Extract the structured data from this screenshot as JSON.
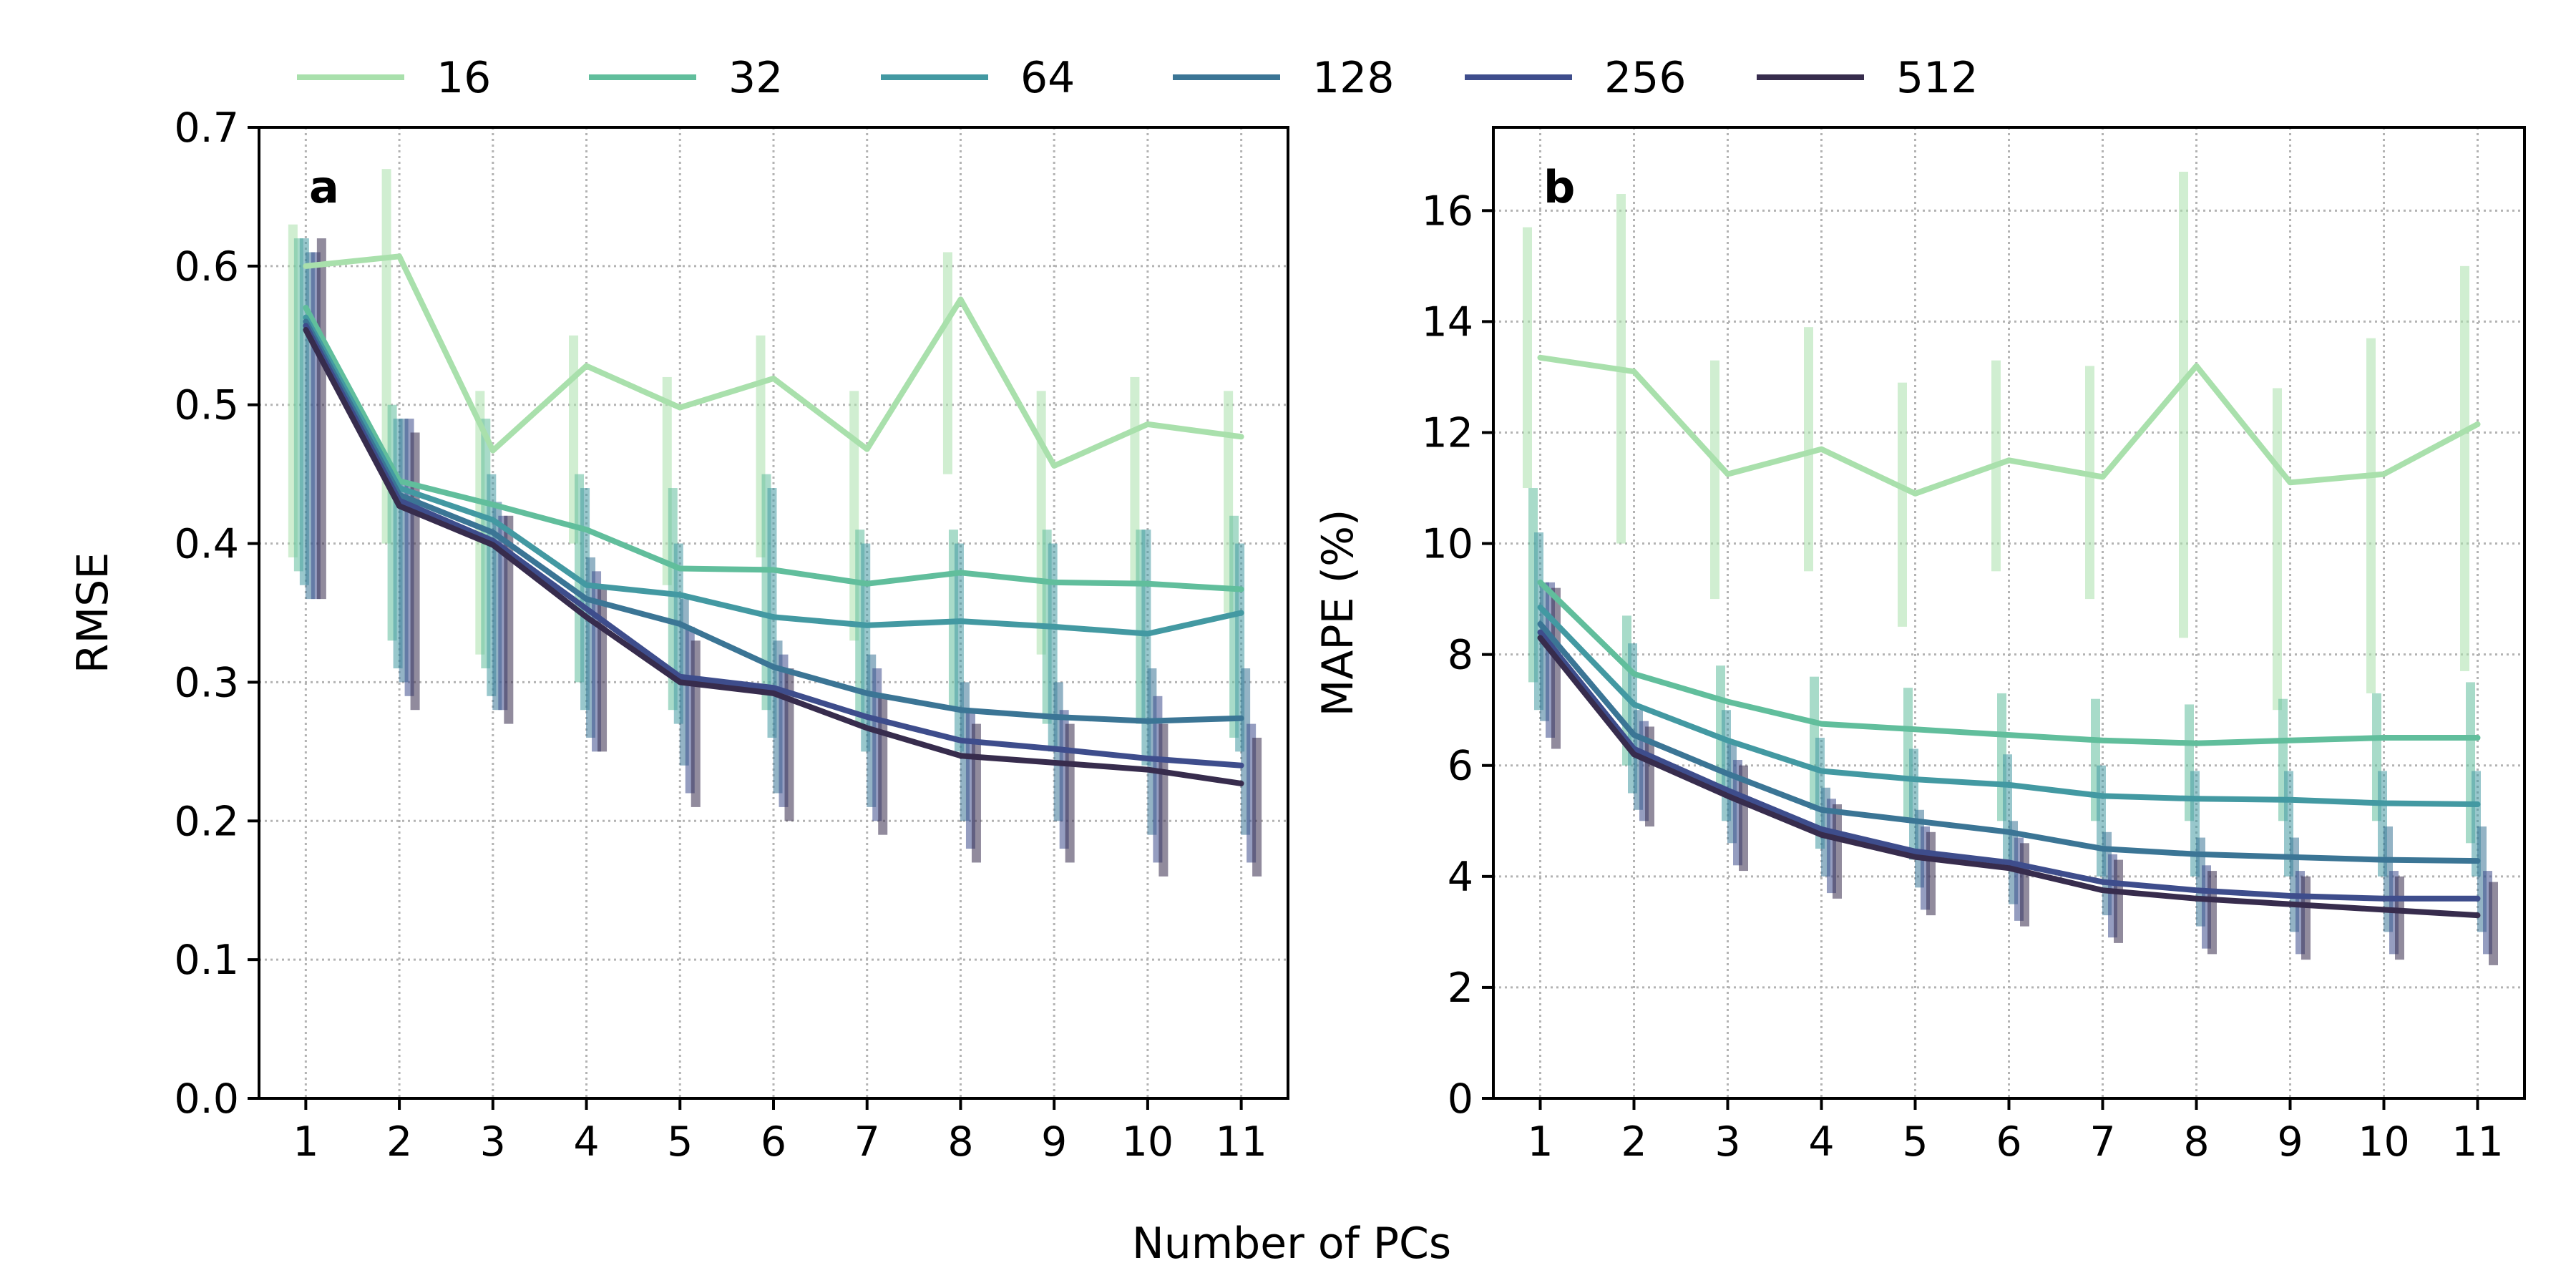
{
  "legend": {
    "entries": [
      {
        "label": "16",
        "color": "#a9e0ac"
      },
      {
        "label": "32",
        "color": "#61be9c"
      },
      {
        "label": "64",
        "color": "#4399a2"
      },
      {
        "label": "128",
        "color": "#3b7595"
      },
      {
        "label": "256",
        "color": "#3e4d8c"
      },
      {
        "label": "512",
        "color": "#372c4d"
      }
    ]
  },
  "x_label": "Number of PCs",
  "chart_data": [
    {
      "type": "line",
      "panel_letter": "a",
      "ylabel": "RMSE",
      "xlabel": "Number of PCs",
      "x": [
        1,
        2,
        3,
        4,
        5,
        6,
        7,
        8,
        9,
        10,
        11
      ],
      "x_ticks": [
        "1",
        "2",
        "3",
        "4",
        "5",
        "6",
        "7",
        "8",
        "9",
        "10",
        "11"
      ],
      "xlim": [
        0.5,
        11.5
      ],
      "ylim": [
        0,
        0.7
      ],
      "y_ticks": [
        0.0,
        0.1,
        0.2,
        0.3,
        0.4,
        0.5,
        0.6,
        0.7
      ],
      "y_tick_labels": [
        "0.0",
        "0.1",
        "0.2",
        "0.3",
        "0.4",
        "0.5",
        "0.6",
        "0.7"
      ],
      "grid": true,
      "error_bars": true,
      "series": [
        {
          "name": "16",
          "color": "#a9e0ac",
          "values": [
            0.6,
            0.607,
            0.467,
            0.528,
            0.498,
            0.519,
            0.468,
            0.576,
            0.456,
            0.486,
            0.477
          ],
          "lower": [
            0.39,
            0.4,
            0.32,
            0.4,
            0.37,
            0.39,
            0.33,
            0.45,
            0.32,
            0.37,
            0.35
          ],
          "upper": [
            0.63,
            0.67,
            0.51,
            0.55,
            0.52,
            0.55,
            0.51,
            0.61,
            0.51,
            0.52,
            0.51
          ]
        },
        {
          "name": "32",
          "color": "#61be9c",
          "values": [
            0.57,
            0.445,
            0.428,
            0.41,
            0.382,
            0.381,
            0.371,
            0.379,
            0.372,
            0.371,
            0.367
          ],
          "lower": [
            0.38,
            0.33,
            0.31,
            0.3,
            0.28,
            0.28,
            0.27,
            0.28,
            0.27,
            0.27,
            0.26
          ],
          "upper": [
            0.62,
            0.5,
            0.49,
            0.45,
            0.44,
            0.45,
            0.41,
            0.41,
            0.41,
            0.41,
            0.42
          ]
        },
        {
          "name": "64",
          "color": "#4399a2",
          "values": [
            0.563,
            0.44,
            0.417,
            0.37,
            0.363,
            0.347,
            0.341,
            0.344,
            0.34,
            0.335,
            0.35
          ],
          "lower": [
            0.37,
            0.31,
            0.29,
            0.28,
            0.27,
            0.26,
            0.25,
            0.25,
            0.25,
            0.24,
            0.25
          ],
          "upper": [
            0.62,
            0.49,
            0.45,
            0.44,
            0.4,
            0.44,
            0.4,
            0.4,
            0.4,
            0.41,
            0.4
          ]
        },
        {
          "name": "128",
          "color": "#3b7595",
          "values": [
            0.56,
            0.435,
            0.408,
            0.36,
            0.342,
            0.311,
            0.292,
            0.28,
            0.275,
            0.272,
            0.274
          ],
          "lower": [
            0.36,
            0.3,
            0.28,
            0.26,
            0.24,
            0.22,
            0.21,
            0.2,
            0.2,
            0.19,
            0.19
          ],
          "upper": [
            0.61,
            0.49,
            0.43,
            0.39,
            0.36,
            0.33,
            0.32,
            0.3,
            0.3,
            0.31,
            0.31
          ]
        },
        {
          "name": "256",
          "color": "#3e4d8c",
          "values": [
            0.557,
            0.431,
            0.402,
            0.353,
            0.304,
            0.296,
            0.275,
            0.258,
            0.252,
            0.245,
            0.24
          ],
          "lower": [
            0.36,
            0.29,
            0.28,
            0.25,
            0.22,
            0.21,
            0.2,
            0.18,
            0.18,
            0.17,
            0.17
          ],
          "upper": [
            0.61,
            0.49,
            0.42,
            0.38,
            0.34,
            0.32,
            0.31,
            0.28,
            0.28,
            0.29,
            0.27
          ]
        },
        {
          "name": "512",
          "color": "#372c4d",
          "values": [
            0.554,
            0.427,
            0.399,
            0.347,
            0.3,
            0.292,
            0.267,
            0.247,
            0.242,
            0.237,
            0.227
          ],
          "lower": [
            0.36,
            0.28,
            0.27,
            0.25,
            0.21,
            0.2,
            0.19,
            0.17,
            0.17,
            0.16,
            0.16
          ],
          "upper": [
            0.62,
            0.48,
            0.42,
            0.37,
            0.33,
            0.31,
            0.29,
            0.27,
            0.27,
            0.27,
            0.26
          ]
        }
      ]
    },
    {
      "type": "line",
      "panel_letter": "b",
      "ylabel": "MAPE (%)",
      "xlabel": "Number of PCs",
      "x": [
        1,
        2,
        3,
        4,
        5,
        6,
        7,
        8,
        9,
        10,
        11
      ],
      "x_ticks": [
        "1",
        "2",
        "3",
        "4",
        "5",
        "6",
        "7",
        "8",
        "9",
        "10",
        "11"
      ],
      "xlim": [
        0.5,
        11.5
      ],
      "ylim": [
        0,
        17.5
      ],
      "y_ticks": [
        0,
        2,
        4,
        6,
        8,
        10,
        12,
        14,
        16
      ],
      "y_tick_labels": [
        "0",
        "2",
        "4",
        "6",
        "8",
        "10",
        "12",
        "14",
        "16"
      ],
      "grid": true,
      "error_bars": true,
      "series": [
        {
          "name": "16",
          "color": "#a9e0ac",
          "values": [
            13.35,
            13.1,
            11.25,
            11.7,
            10.9,
            11.5,
            11.2,
            13.2,
            11.1,
            11.25,
            12.15
          ],
          "lower": [
            11.0,
            10.0,
            9.0,
            9.5,
            8.5,
            9.5,
            9.0,
            8.3,
            7.0,
            7.3,
            7.7
          ],
          "upper": [
            15.7,
            16.3,
            13.3,
            13.9,
            12.9,
            13.3,
            13.2,
            16.7,
            12.8,
            13.7,
            15.0
          ]
        },
        {
          "name": "32",
          "color": "#61be9c",
          "values": [
            9.3,
            7.65,
            7.15,
            6.75,
            6.65,
            6.55,
            6.45,
            6.4,
            6.45,
            6.5,
            6.5
          ],
          "lower": [
            7.5,
            6.0,
            5.5,
            5.2,
            5.0,
            5.0,
            5.0,
            5.0,
            5.0,
            5.0,
            4.6
          ],
          "upper": [
            11.0,
            8.7,
            7.8,
            7.6,
            7.4,
            7.3,
            7.2,
            7.1,
            7.2,
            7.3,
            7.5
          ]
        },
        {
          "name": "64",
          "color": "#4399a2",
          "values": [
            8.85,
            7.1,
            6.45,
            5.9,
            5.75,
            5.65,
            5.45,
            5.4,
            5.38,
            5.32,
            5.3
          ],
          "lower": [
            7.0,
            5.5,
            5.0,
            4.5,
            4.3,
            4.2,
            4.0,
            4.0,
            4.0,
            4.0,
            4.0
          ],
          "upper": [
            10.2,
            8.2,
            7.0,
            6.5,
            6.3,
            6.2,
            6.0,
            5.9,
            5.9,
            5.9,
            5.9
          ]
        },
        {
          "name": "128",
          "color": "#3b7595",
          "values": [
            8.55,
            6.55,
            5.85,
            5.2,
            5.0,
            4.8,
            4.5,
            4.4,
            4.35,
            4.3,
            4.28
          ],
          "lower": [
            6.8,
            5.2,
            4.6,
            4.0,
            3.8,
            3.5,
            3.3,
            3.1,
            3.0,
            3.0,
            3.0
          ],
          "upper": [
            9.3,
            7.0,
            6.4,
            5.6,
            5.2,
            5.0,
            4.8,
            4.7,
            4.7,
            4.9,
            4.9
          ]
        },
        {
          "name": "256",
          "color": "#3e4d8c",
          "values": [
            8.4,
            6.3,
            5.55,
            4.85,
            4.45,
            4.25,
            3.9,
            3.75,
            3.65,
            3.6,
            3.6
          ],
          "lower": [
            6.5,
            5.0,
            4.2,
            3.7,
            3.4,
            3.2,
            2.9,
            2.7,
            2.6,
            2.6,
            2.6
          ],
          "upper": [
            9.3,
            6.8,
            6.1,
            5.4,
            4.9,
            4.7,
            4.4,
            4.2,
            4.1,
            4.1,
            4.1
          ]
        },
        {
          "name": "512",
          "color": "#372c4d",
          "values": [
            8.3,
            6.2,
            5.45,
            4.75,
            4.35,
            4.15,
            3.75,
            3.6,
            3.5,
            3.4,
            3.3
          ],
          "lower": [
            6.3,
            4.9,
            4.1,
            3.6,
            3.3,
            3.1,
            2.8,
            2.6,
            2.5,
            2.5,
            2.4
          ],
          "upper": [
            9.2,
            6.7,
            6.0,
            5.3,
            4.8,
            4.6,
            4.3,
            4.1,
            4.0,
            4.0,
            3.9
          ]
        }
      ]
    }
  ]
}
